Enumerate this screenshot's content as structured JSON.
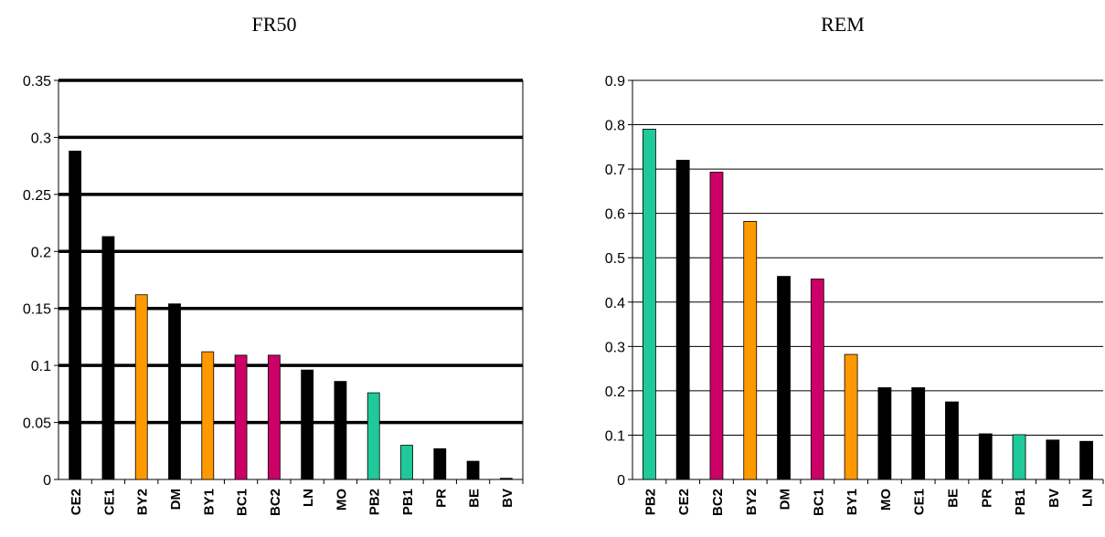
{
  "colors": {
    "black": "#000000",
    "orange": "#ff9900",
    "magenta": "#cc0066",
    "teal": "#1fc99a"
  },
  "chart_data": [
    {
      "type": "bar",
      "title": "FR50",
      "ylim": [
        0,
        0.35
      ],
      "yticks": [
        "0",
        "0.05",
        "0.1",
        "0.15",
        "0.2",
        "0.25",
        "0.3",
        "0.35"
      ],
      "ytick_values": [
        0,
        0.05,
        0.1,
        0.15,
        0.2,
        0.25,
        0.3,
        0.35
      ],
      "grid": "major y gridlines (thick)",
      "categories": [
        "CE2",
        "CE1",
        "BY2",
        "DM",
        "BY1",
        "BC1",
        "BC2",
        "LN",
        "MO",
        "PB2",
        "PB1",
        "PR",
        "BE",
        "BV"
      ],
      "values": [
        0.288,
        0.213,
        0.162,
        0.154,
        0.112,
        0.109,
        0.109,
        0.096,
        0.086,
        0.076,
        0.03,
        0.027,
        0.016,
        0.001
      ],
      "bar_colors": [
        "#000000",
        "#000000",
        "#ff9900",
        "#000000",
        "#ff9900",
        "#cc0066",
        "#cc0066",
        "#000000",
        "#000000",
        "#1fc99a",
        "#1fc99a",
        "#000000",
        "#000000",
        "#000000"
      ]
    },
    {
      "type": "bar",
      "title": "REM",
      "ylim": [
        0,
        0.9
      ],
      "yticks": [
        "0",
        "0.1",
        "0.2",
        "0.3",
        "0.4",
        "0.5",
        "0.6",
        "0.7",
        "0.8",
        "0.9"
      ],
      "ytick_values": [
        0,
        0.1,
        0.2,
        0.3,
        0.4,
        0.5,
        0.6,
        0.7,
        0.8,
        0.9
      ],
      "grid": "major y gridlines (thin)",
      "categories": [
        "PB2",
        "CE2",
        "BC2",
        "BY2",
        "DM",
        "BC1",
        "BY1",
        "MO",
        "CE1",
        "BE",
        "PR",
        "PB1",
        "BV",
        "LN"
      ],
      "values": [
        0.79,
        0.72,
        0.693,
        0.582,
        0.458,
        0.452,
        0.282,
        0.207,
        0.207,
        0.175,
        0.103,
        0.101,
        0.089,
        0.086
      ],
      "bar_colors": [
        "#1fc99a",
        "#000000",
        "#cc0066",
        "#ff9900",
        "#000000",
        "#cc0066",
        "#ff9900",
        "#000000",
        "#000000",
        "#000000",
        "#000000",
        "#1fc99a",
        "#000000",
        "#000000"
      ]
    }
  ]
}
